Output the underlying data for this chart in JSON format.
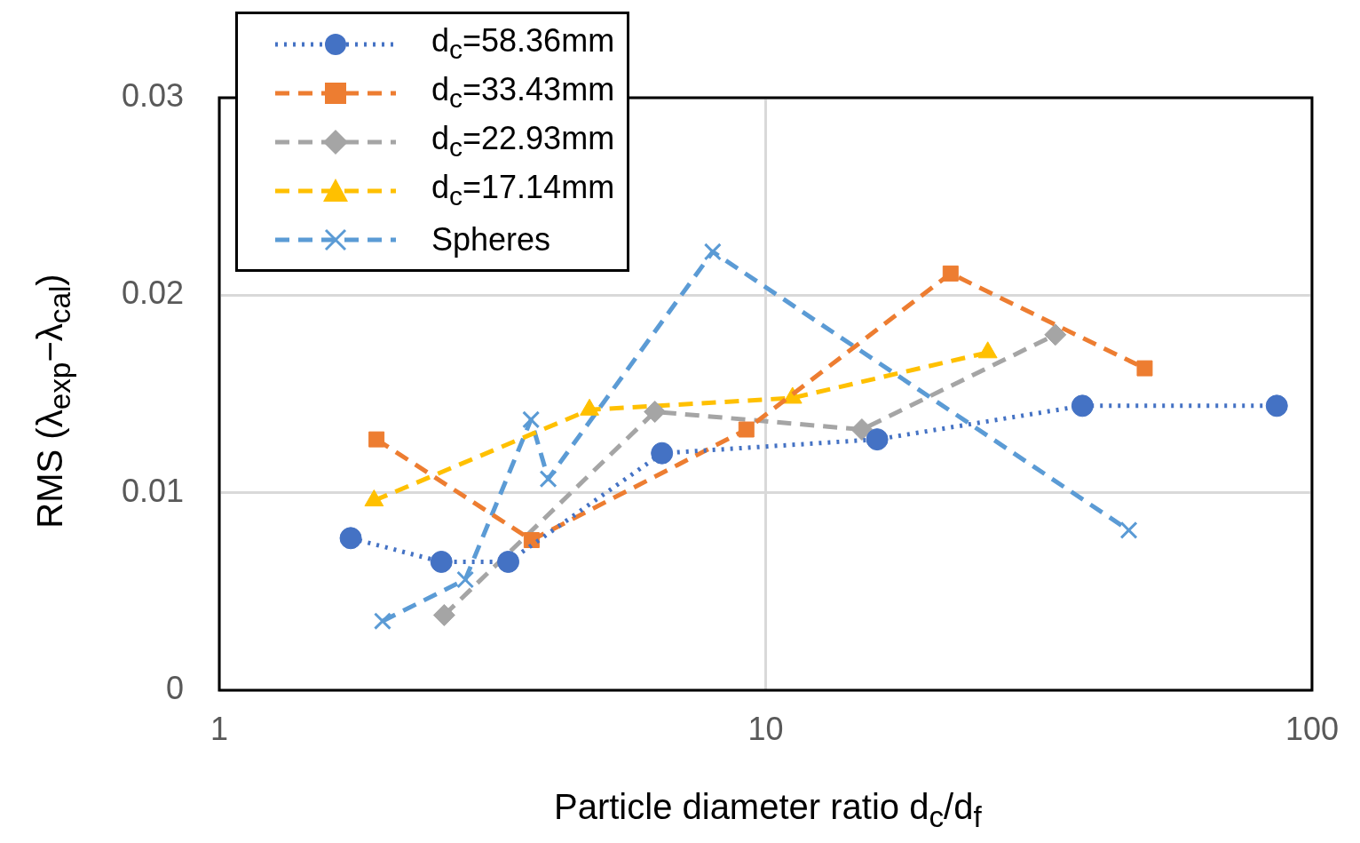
{
  "chart_data": {
    "type": "line",
    "xlabel": "Particle diameter ratio d$_{c}$/d$_{f}$",
    "ylabel": "RMS (λ$_{exp}$−λ$_{cal}$)",
    "log": "x",
    "xlim": [
      1,
      100
    ],
    "xticks": [
      1,
      10,
      100
    ],
    "ylim": [
      0,
      0.03
    ],
    "yticks": [
      0,
      0.01,
      0.02,
      0.03
    ],
    "grid": true,
    "legend": "top left",
    "series": [
      {
        "name": "d$_{c}$=58.36mm",
        "color": "#4472c4",
        "marker": "circle",
        "line_style": "dotted",
        "x": [
          1.74,
          2.55,
          3.38,
          6.46,
          16.0,
          38.0,
          86.2
        ],
        "values": [
          0.0077,
          0.0065,
          0.0065,
          0.012,
          0.0127,
          0.0144,
          0.0144
        ]
      },
      {
        "name": "d$_{c}$=33.43mm",
        "color": "#ed7d31",
        "marker": "square",
        "line_style": "dashed",
        "x": [
          1.94,
          3.73,
          9.22,
          21.8,
          49.4
        ],
        "values": [
          0.0127,
          0.0076,
          0.0132,
          0.0211,
          0.0163
        ]
      },
      {
        "name": "d$_{c}$=22.93mm",
        "color": "#a5a5a5",
        "marker": "diamond",
        "line_style": "dashed",
        "x": [
          2.58,
          6.27,
          15.0,
          33.9
        ],
        "values": [
          0.0038,
          0.0141,
          0.0132,
          0.018
        ]
      },
      {
        "name": "d$_{c}$=17.14mm",
        "color": "#ffc000",
        "marker": "triangle",
        "line_style": "dashed",
        "x": [
          1.92,
          4.76,
          11.2,
          25.5
        ],
        "values": [
          0.0096,
          0.0142,
          0.0148,
          0.0171
        ]
      },
      {
        "name": "Spheres",
        "color": "#5b9bd5",
        "marker": "cross",
        "line_style": "dashed",
        "x": [
          1.99,
          2.82,
          3.72,
          4.0,
          8.0,
          46.2
        ],
        "values": [
          0.0035,
          0.0056,
          0.0137,
          0.0107,
          0.0222,
          0.0081
        ]
      }
    ]
  }
}
